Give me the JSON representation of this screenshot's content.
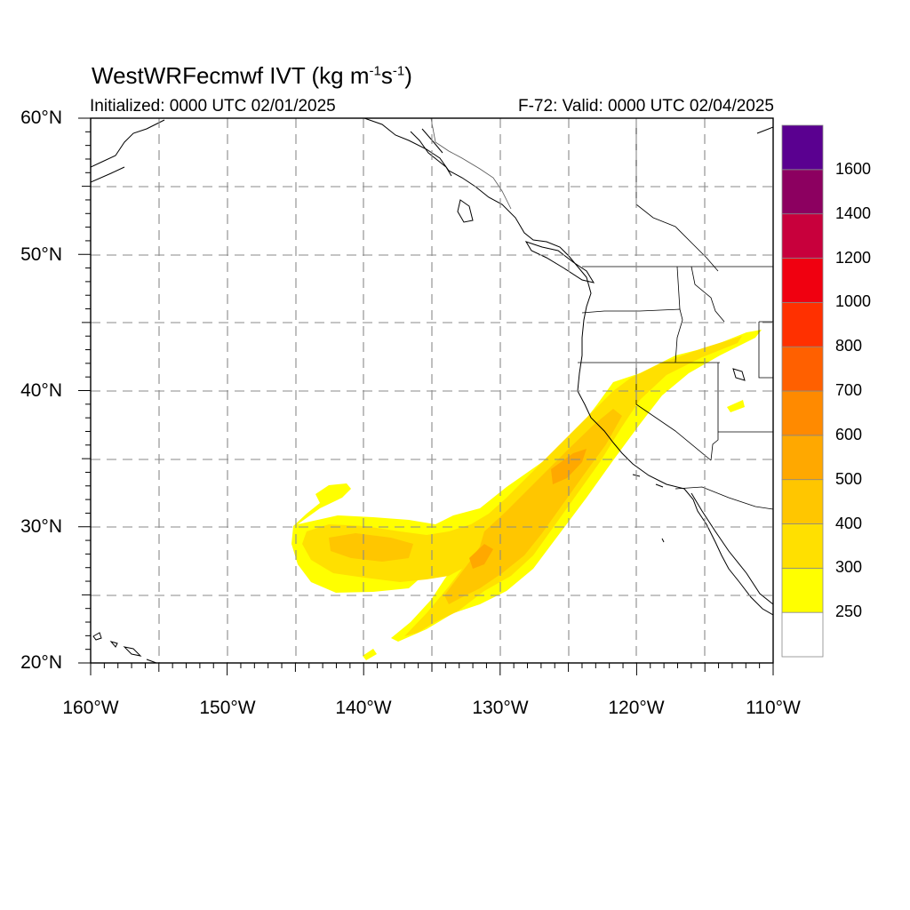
{
  "title": {
    "prefix": "WestWRFecmwf IVT (kg m",
    "sup1": "-1",
    "mid": "s",
    "sup2": "-1",
    "suffix": ")"
  },
  "initialized": "Initialized: 0000 UTC 02/01/2025",
  "valid": "F-72: Valid: 0000 UTC 02/04/2025",
  "axes": {
    "lat_labels": [
      "60°N",
      "50°N",
      "40°N",
      "30°N",
      "20°N"
    ],
    "lon_labels": [
      "160°W",
      "150°W",
      "140°W",
      "130°W",
      "120°W",
      "110°W"
    ],
    "lat_range": [
      20,
      60
    ],
    "lon_range": [
      -160,
      -110
    ],
    "grid": true,
    "gridline_style": "dashed"
  },
  "colorbar": {
    "labels": [
      "250",
      "300",
      "400",
      "500",
      "600",
      "700",
      "800",
      "1000",
      "1200",
      "1400",
      "1600"
    ],
    "levels": [
      250,
      300,
      400,
      500,
      600,
      700,
      800,
      1000,
      1200,
      1400,
      1600
    ],
    "colors": [
      "#ffffff",
      "#ffff00",
      "#ffe000",
      "#ffc600",
      "#ffa800",
      "#ff8a00",
      "#ff6000",
      "#ff3000",
      "#f00010",
      "#c8003c",
      "#8c0060",
      "#5a0090"
    ]
  },
  "field": {
    "name": "Integrated Vapor Transport",
    "units": "kg m-1 s-1",
    "plume_max_band": "500-600",
    "subtropical_patch_band": "250-400"
  }
}
